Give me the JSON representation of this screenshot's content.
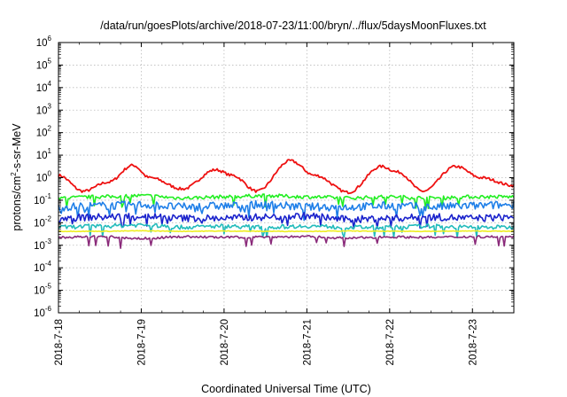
{
  "chart_data": {
    "type": "line",
    "title": "/data/run/goesPlots/archive/2018-07-23/11:00/bryn/../flux/5daysMoonFluxes.txt",
    "xlabel": "Coordinated Universal Time (UTC)",
    "ylabel_parts": [
      "protons/cm",
      "2",
      "-s-sr-MeV"
    ],
    "y_scale": "log",
    "ylim": [
      1e-06,
      1000000.0
    ],
    "y_ticks": [
      {
        "base": "10",
        "exp": "-6",
        "value": -6
      },
      {
        "base": "10",
        "exp": "-5",
        "value": -5
      },
      {
        "base": "10",
        "exp": "-4",
        "value": -4
      },
      {
        "base": "10",
        "exp": "-3",
        "value": -3
      },
      {
        "base": "10",
        "exp": "-2",
        "value": -2
      },
      {
        "base": "10",
        "exp": "-1",
        "value": -1
      },
      {
        "base": "10",
        "exp": "0",
        "value": 0
      },
      {
        "base": "10",
        "exp": "1",
        "value": 1
      },
      {
        "base": "10",
        "exp": "2",
        "value": 2
      },
      {
        "base": "10",
        "exp": "3",
        "value": 3
      },
      {
        "base": "10",
        "exp": "4",
        "value": 4
      },
      {
        "base": "10",
        "exp": "5",
        "value": 5
      },
      {
        "base": "10",
        "exp": "6",
        "value": 6
      }
    ],
    "x_range": [
      "2018-07-18 00:00",
      "2018-07-23 12:00"
    ],
    "x_ticks": [
      {
        "label": "2018-7-18",
        "day": 0
      },
      {
        "label": "2018-7-19",
        "day": 1
      },
      {
        "label": "2018-7-20",
        "day": 2
      },
      {
        "label": "2018-7-21",
        "day": 3
      },
      {
        "label": "2018-7-22",
        "day": 4
      },
      {
        "label": "2018-7-23",
        "day": 5
      }
    ],
    "grid": true,
    "series": [
      {
        "color": "#ee1111",
        "day": [
          0.0,
          0.3,
          0.6,
          0.9,
          1.1,
          1.5,
          1.9,
          2.1,
          2.4,
          2.8,
          3.1,
          3.5,
          3.9,
          4.1,
          4.4,
          4.8,
          5.1,
          5.5
        ],
        "log10": [
          0.1,
          -0.6,
          -0.2,
          0.55,
          0.0,
          -0.5,
          0.35,
          0.1,
          -0.6,
          0.75,
          0.1,
          -0.65,
          0.5,
          0.25,
          -0.6,
          0.5,
          0.0,
          -0.35
        ]
      },
      {
        "color": "#22ee22",
        "day": [
          0.0,
          0.5,
          1.0,
          1.5,
          2.0,
          2.5,
          3.0,
          3.5,
          4.0,
          4.5,
          5.0,
          5.5
        ],
        "log10": [
          -0.9,
          -0.85,
          -0.8,
          -0.9,
          -0.85,
          -0.8,
          -0.85,
          -0.9,
          -0.85,
          -0.9,
          -0.85,
          -0.85
        ]
      },
      {
        "color": "#1f7fe8",
        "day": [
          0.0,
          0.5,
          1.0,
          1.5,
          2.0,
          2.5,
          3.0,
          3.5,
          4.0,
          4.5,
          5.0,
          5.5
        ],
        "log10": [
          -1.3,
          -1.25,
          -1.2,
          -1.3,
          -1.25,
          -1.2,
          -1.3,
          -1.3,
          -1.25,
          -1.3,
          -1.25,
          -1.2
        ]
      },
      {
        "color": "#1a22cc",
        "day": [
          0.0,
          0.5,
          1.0,
          1.5,
          2.0,
          2.5,
          3.0,
          3.5,
          4.0,
          4.5,
          5.0,
          5.5
        ],
        "log10": [
          -1.8,
          -1.75,
          -1.7,
          -1.8,
          -1.8,
          -1.75,
          -1.7,
          -1.85,
          -1.8,
          -1.75,
          -1.8,
          -1.75
        ]
      },
      {
        "color": "#22bbbb",
        "day": [
          0.0,
          0.5,
          1.0,
          1.5,
          2.0,
          2.5,
          3.0,
          3.5,
          4.0,
          4.5,
          5.0,
          5.5
        ],
        "log10": [
          -2.2,
          -2.15,
          -2.1,
          -2.2,
          -2.15,
          -2.2,
          -2.15,
          -2.2,
          -2.2,
          -2.15,
          -2.2,
          -2.2
        ]
      },
      {
        "color": "#eeee22",
        "day": [
          0.0,
          0.5,
          1.0,
          1.5,
          2.0,
          2.5,
          3.0,
          3.5,
          4.0,
          4.5,
          5.0,
          5.5
        ],
        "log10": [
          -2.38,
          -2.38,
          -2.36,
          -2.38,
          -2.37,
          -2.38,
          -2.38,
          -2.37,
          -2.38,
          -2.38,
          -2.37,
          -2.38
        ]
      },
      {
        "color": "#8a2a7a",
        "day": [
          0.0,
          0.5,
          1.0,
          1.5,
          2.0,
          2.5,
          3.0,
          3.5,
          4.0,
          4.5,
          5.0,
          5.5
        ],
        "log10": [
          -2.65,
          -2.62,
          -2.7,
          -2.62,
          -2.65,
          -2.63,
          -2.62,
          -2.68,
          -2.63,
          -2.65,
          -2.62,
          -2.63
        ]
      }
    ]
  }
}
